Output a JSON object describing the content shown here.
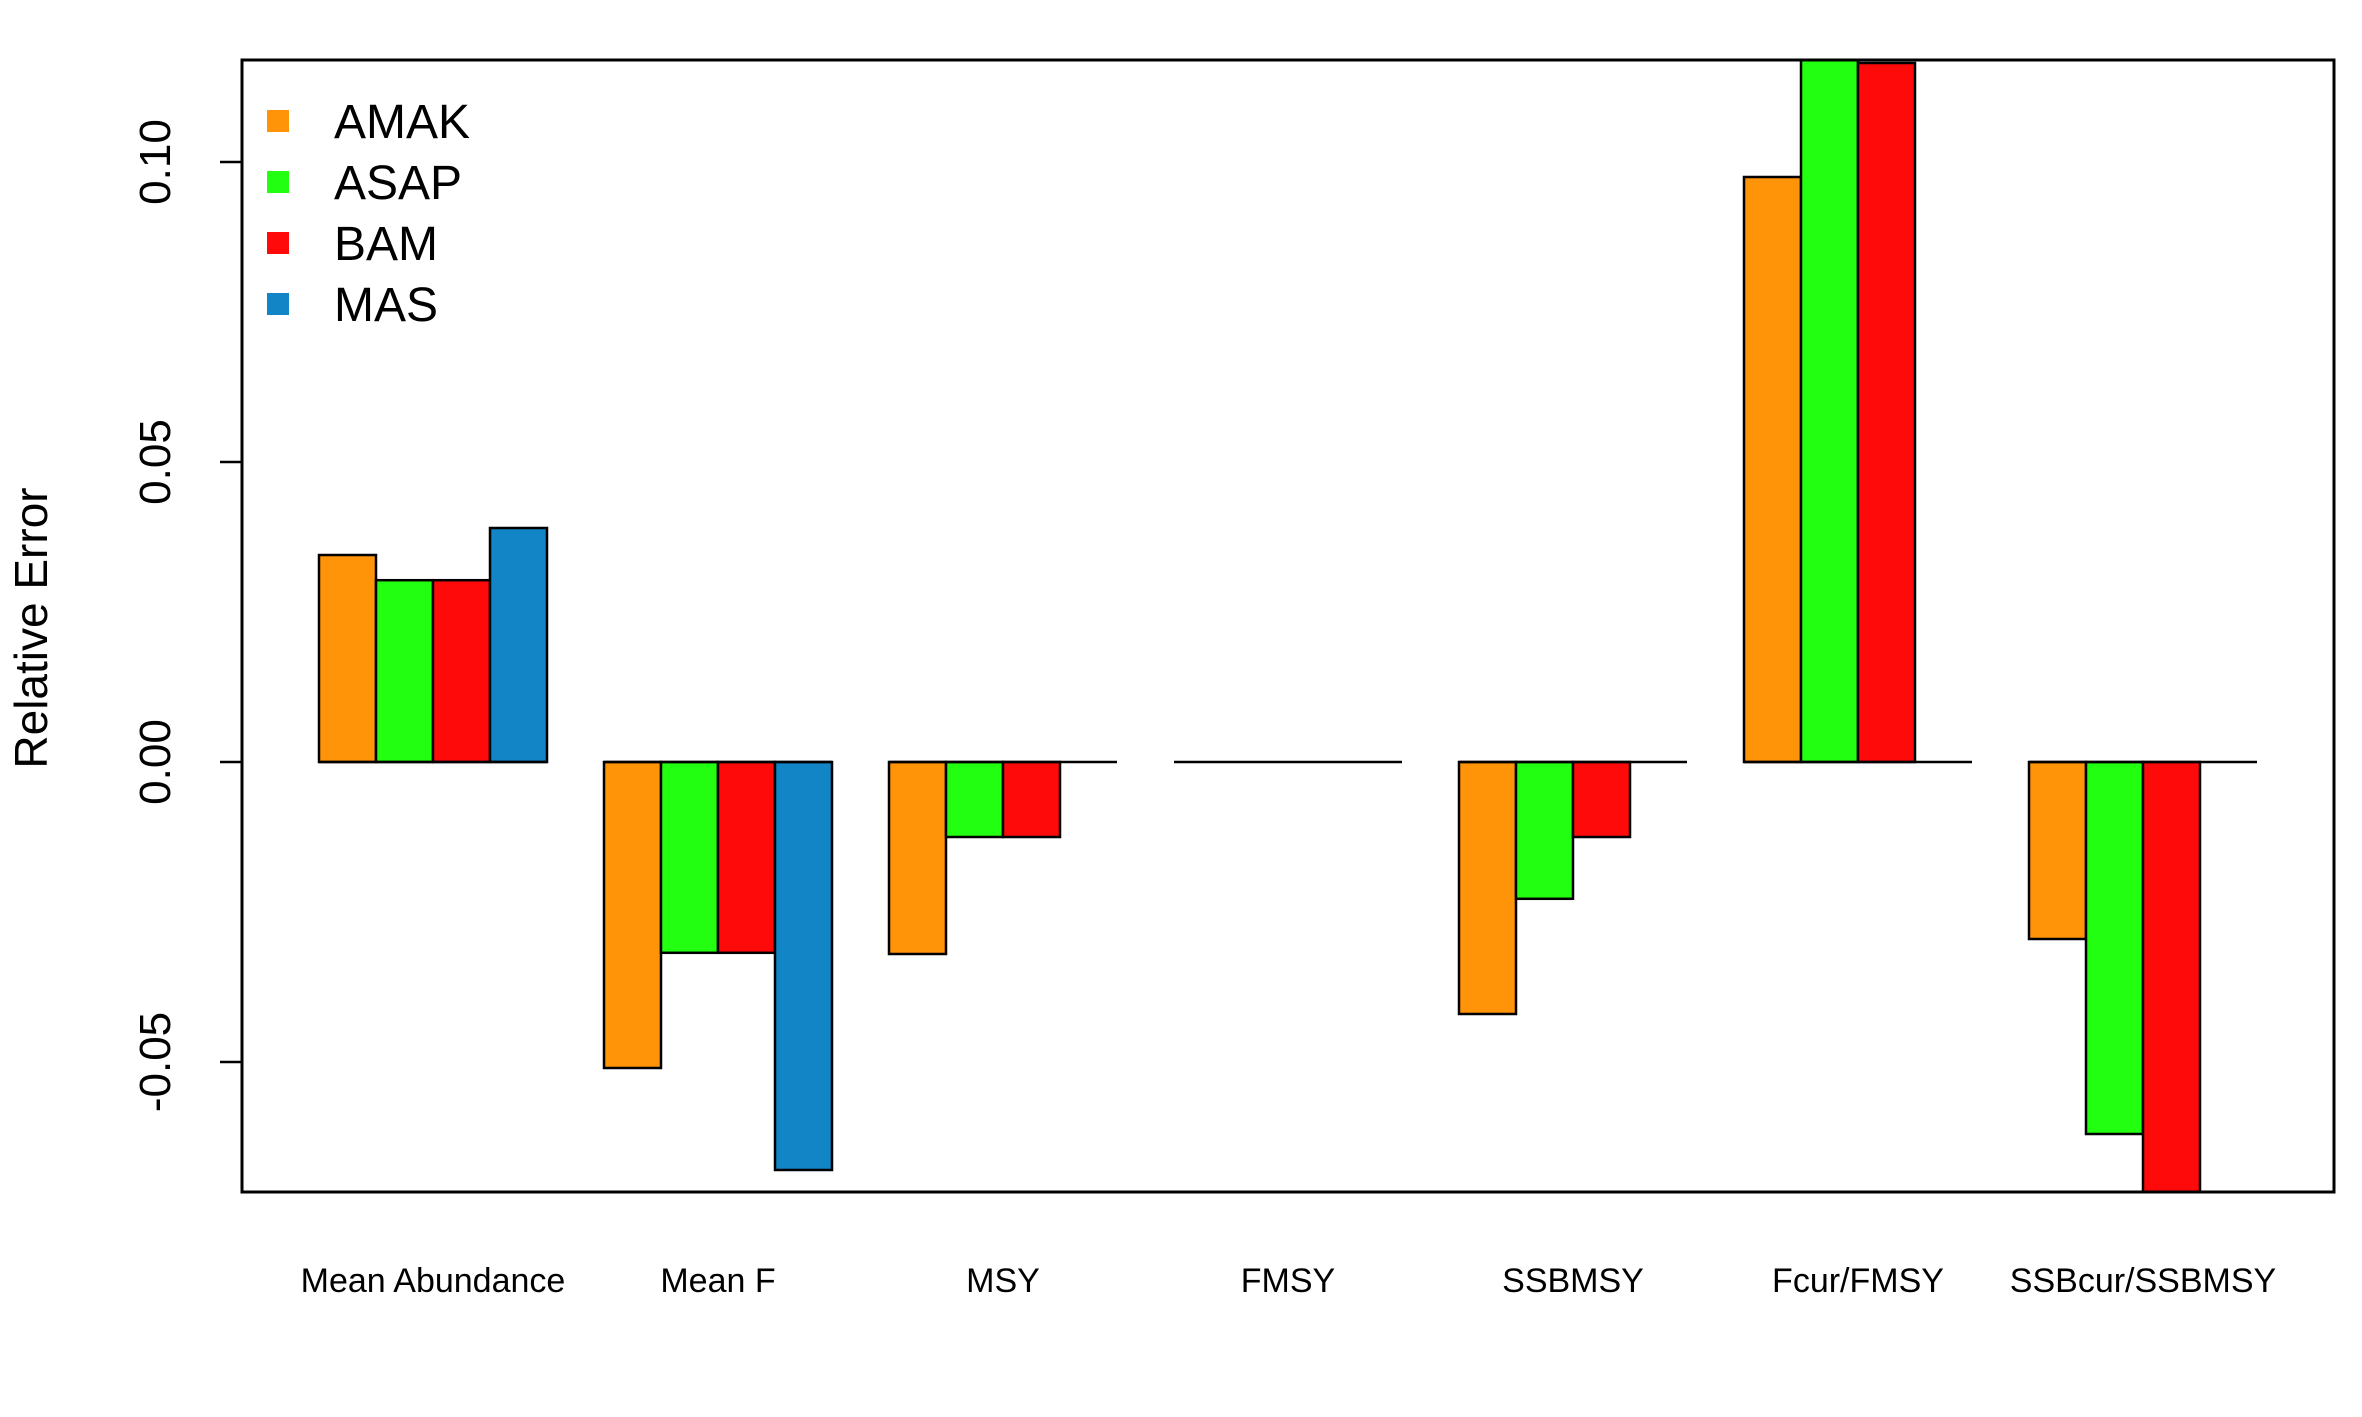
{
  "chart_data": {
    "type": "bar",
    "title": "",
    "xlabel": "",
    "ylabel": "Relative Error",
    "ylim": [
      -0.072,
      0.1168
    ],
    "y_ticks": [
      {
        "value": -0.05,
        "label": "-0.05"
      },
      {
        "value": 0.0,
        "label": "0.00"
      },
      {
        "value": 0.05,
        "label": "0.05"
      },
      {
        "value": 0.1,
        "label": "0.10"
      }
    ],
    "grid": false,
    "legend_position": "top-left",
    "categories": [
      "Mean Abundance",
      "Mean F",
      "MSY",
      "FMSY",
      "SSBMSY",
      "Fcur/FMSY",
      "SSBcur/SSBMSY"
    ],
    "series": [
      {
        "name": "AMAK",
        "color": "#FF9408",
        "values": [
          0.0345,
          -0.051,
          -0.032,
          0.0,
          -0.042,
          0.0975,
          -0.0295
        ]
      },
      {
        "name": "ASAP",
        "color": "#22FF11",
        "values": [
          0.0303,
          -0.0318,
          -0.0125,
          0.0,
          -0.0228,
          0.1175,
          -0.062
        ]
      },
      {
        "name": "BAM",
        "color": "#FF0A0A",
        "values": [
          0.0303,
          -0.0318,
          -0.0125,
          0.0,
          -0.0125,
          0.1165,
          -0.075
        ]
      },
      {
        "name": "MAS",
        "color": "#1185C6",
        "values": [
          0.039,
          -0.068,
          0.0,
          0.0,
          0.0,
          0.0,
          0.0
        ]
      }
    ]
  }
}
